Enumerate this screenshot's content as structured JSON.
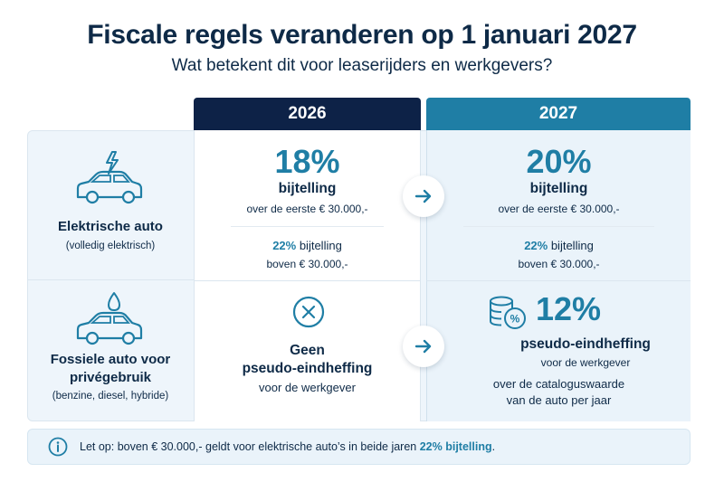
{
  "header": {
    "title": "Fiscale regels veranderen op 1 januari 2027",
    "subtitle": "Wat betekent dit voor leaserijders en werkgevers?"
  },
  "columns": {
    "year1": "2026",
    "year2": "2027"
  },
  "rows": {
    "electric": {
      "label": "Elektrische auto",
      "sublabel": "(volledig elektrisch)",
      "icon": "electric-car-icon",
      "y2026": {
        "pct": "18%",
        "label": "bijtelling",
        "note": "over de eerste € 30.000,-",
        "upper_pct": "22%",
        "upper_label": " bijtelling",
        "upper_note": "boven € 30.000,-"
      },
      "y2027": {
        "pct": "20%",
        "label": "bijtelling",
        "note": "over de eerste € 30.000,-",
        "upper_pct": "22%",
        "upper_label": " bijtelling",
        "upper_note": "boven € 30.000,-"
      }
    },
    "fossil": {
      "label_line1": "Fossiele auto voor",
      "label_line2": "privégebruik",
      "sublabel": "(benzine, diesel, hybride)",
      "icon": "fuel-car-icon",
      "y2026": {
        "title_line1": "Geen",
        "title_line2": "pseudo-eindheffing",
        "note": "voor de werkgever",
        "icon": "x-circle-icon"
      },
      "y2027": {
        "pct": "12%",
        "label": "pseudo-eindheffing",
        "note": "voor de werkgever",
        "detail_line1": "over de cataloguswaarde",
        "detail_line2": "van de auto per jaar",
        "icon": "coins-percent-icon"
      }
    }
  },
  "notice": {
    "text": "Let op: boven € 30.000,- geldt voor elektrische auto’s in beide jaren ",
    "highlight": "22% bijtelling",
    "end": "."
  },
  "colors": {
    "navy": "#0d2247",
    "accent": "#1f7ea5"
  }
}
